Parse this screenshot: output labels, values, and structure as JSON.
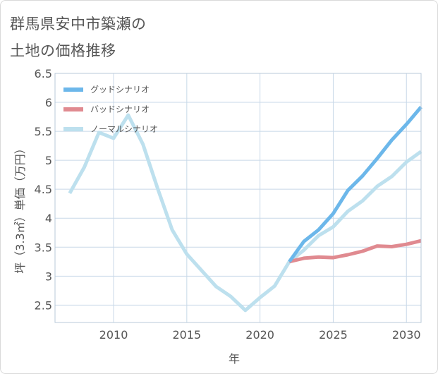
{
  "title_lines": [
    "群馬県安中市築瀬の",
    "土地の価格推移"
  ],
  "chart_data": {
    "type": "line",
    "xlabel": "年",
    "ylabel": "坪（3.3㎡）単価（万円）",
    "xlim": [
      2006,
      2031
    ],
    "ylim": [
      2.2,
      6.5
    ],
    "xticks": [
      2010,
      2015,
      2020,
      2025,
      2030
    ],
    "yticks": [
      2.5,
      3,
      3.5,
      4,
      4.5,
      5,
      5.5,
      6,
      6.5
    ],
    "ytick_labels": [
      "2.5",
      "3",
      "3.5",
      "4",
      "4.5",
      "5",
      "5.5",
      "6",
      "6.5"
    ],
    "grid": true,
    "legend_position": "top-left",
    "series": [
      {
        "name": "グッドシナリオ",
        "color": "#6cb7ea",
        "x": [
          2022,
          2023,
          2024,
          2025,
          2026,
          2027,
          2028,
          2029,
          2030,
          2031
        ],
        "values": [
          3.25,
          3.6,
          3.8,
          4.08,
          4.48,
          4.73,
          5.03,
          5.35,
          5.62,
          5.92
        ]
      },
      {
        "name": "バッドシナリオ",
        "color": "#e08a90",
        "x": [
          2022,
          2023,
          2024,
          2025,
          2026,
          2027,
          2028,
          2029,
          2030,
          2031
        ],
        "values": [
          3.25,
          3.31,
          3.33,
          3.32,
          3.37,
          3.43,
          3.52,
          3.51,
          3.55,
          3.61
        ]
      },
      {
        "name": "ノーマルシナリオ",
        "color": "#bde0ee",
        "x": [
          2007,
          2008,
          2009,
          2010,
          2011,
          2012,
          2013,
          2014,
          2015,
          2016,
          2017,
          2018,
          2019,
          2020,
          2021,
          2022,
          2023,
          2024,
          2025,
          2026,
          2027,
          2028,
          2029,
          2030,
          2031
        ],
        "values": [
          4.43,
          4.88,
          5.48,
          5.38,
          5.78,
          5.28,
          4.52,
          3.8,
          3.38,
          3.1,
          2.82,
          2.65,
          2.41,
          2.63,
          2.83,
          3.25,
          3.45,
          3.7,
          3.85,
          4.12,
          4.3,
          4.55,
          4.72,
          4.97,
          5.15
        ]
      }
    ]
  }
}
